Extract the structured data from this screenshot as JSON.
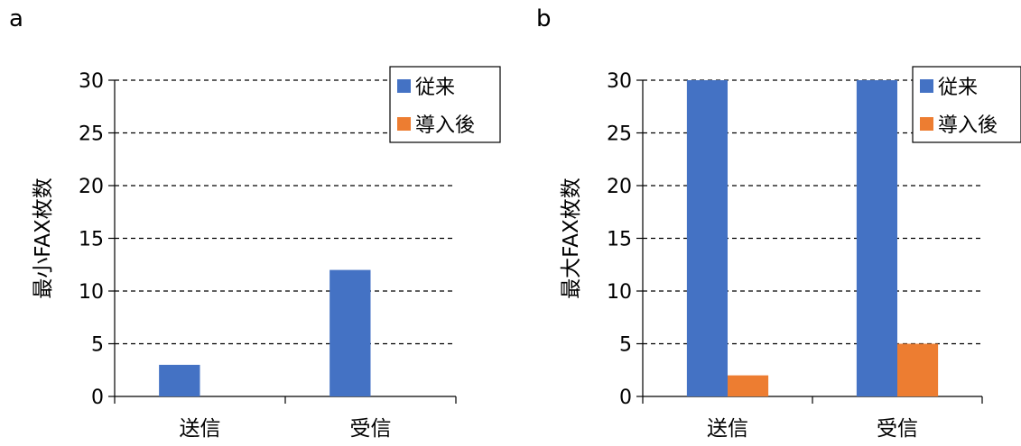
{
  "panels": [
    {
      "label": "a"
    },
    {
      "label": "b"
    }
  ],
  "colors": {
    "series_1": "#4472C4",
    "series_2": "#ED7D31"
  },
  "chart_data": [
    {
      "type": "bar",
      "ylabel": "最小FAX枚数",
      "xlabel": "",
      "categories": [
        "送信",
        "受信"
      ],
      "ylim": [
        0,
        30
      ],
      "yticks": [
        0,
        5,
        10,
        15,
        20,
        25,
        30
      ],
      "grid": "dashed horizontal",
      "legend_position": "top-right",
      "series": [
        {
          "name": "従来",
          "values": [
            3,
            12
          ]
        },
        {
          "name": "導入後",
          "values": [
            0,
            0
          ]
        }
      ]
    },
    {
      "type": "bar",
      "ylabel": "最大FAX枚数",
      "xlabel": "",
      "categories": [
        "送信",
        "受信"
      ],
      "ylim": [
        0,
        30
      ],
      "yticks": [
        0,
        5,
        10,
        15,
        20,
        25,
        30
      ],
      "grid": "dashed horizontal",
      "legend_position": "top-right",
      "series": [
        {
          "name": "従来",
          "values": [
            30,
            30
          ]
        },
        {
          "name": "導入後",
          "values": [
            2,
            5
          ]
        }
      ]
    }
  ]
}
